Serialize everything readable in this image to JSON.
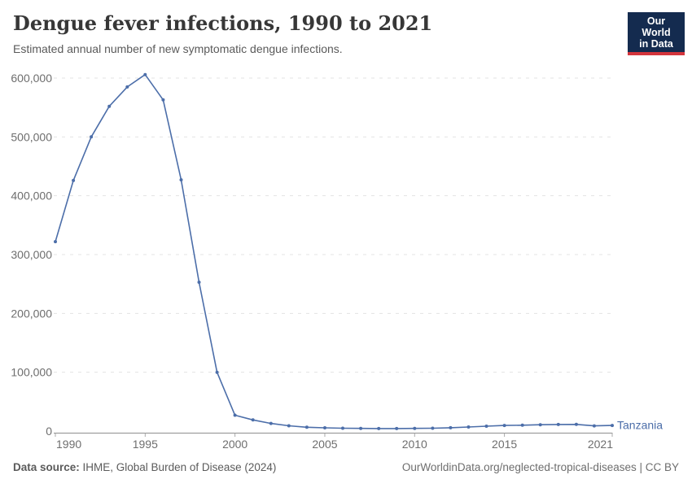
{
  "header": {
    "title": "Dengue fever infections, 1990 to 2021",
    "subtitle": "Estimated annual number of new symptomatic dengue infections."
  },
  "logo": {
    "line1": "Our World",
    "line2": "in Data",
    "bg_color": "#142B4F",
    "bar_color": "#D4353C"
  },
  "chart_data": {
    "type": "line",
    "title": "Dengue fever infections, 1990 to 2021",
    "xlabel": "",
    "ylabel": "",
    "xlim": [
      1990,
      2021
    ],
    "ylim": [
      0,
      600000
    ],
    "grid": "horizontal-dashed",
    "legend_position": "end-of-line-label",
    "x_ticks": [
      1990,
      1995,
      2000,
      2005,
      2010,
      2015,
      2021
    ],
    "x_tick_labels": [
      "1990",
      "1995",
      "2000",
      "2005",
      "2010",
      "2015",
      "2021"
    ],
    "y_ticks": [
      0,
      100000,
      200000,
      300000,
      400000,
      500000,
      600000
    ],
    "y_tick_labels": [
      "0",
      "100,000",
      "200,000",
      "300,000",
      "400,000",
      "500,000",
      "600,000"
    ],
    "x": [
      1990,
      1991,
      1992,
      1993,
      1994,
      1995,
      1996,
      1997,
      1998,
      1999,
      2000,
      2001,
      2002,
      2003,
      2004,
      2005,
      2006,
      2007,
      2008,
      2009,
      2010,
      2011,
      2012,
      2013,
      2014,
      2015,
      2016,
      2017,
      2018,
      2019,
      2020,
      2021
    ],
    "series": [
      {
        "name": "Tanzania",
        "color": "#4C6EA9",
        "values": [
          322000,
          426000,
          500000,
          552000,
          585000,
          606000,
          563000,
          427000,
          253000,
          100000,
          27000,
          19000,
          13000,
          9000,
          6500,
          5500,
          4800,
          4500,
          4300,
          4300,
          4500,
          4900,
          5600,
          6900,
          8300,
          9500,
          10000,
          10800,
          11200,
          11300,
          8800,
          9600
        ]
      }
    ],
    "colors": {
      "gridline": "#e3e3e3",
      "axis_line": "#8f8f8f",
      "tick_label": "#6e6e6e"
    }
  },
  "footer": {
    "source_label": "Data source:",
    "source_text": " IHME, Global Burden of Disease (2024)",
    "credit": "OurWorldinData.org/neglected-tropical-diseases | CC BY"
  }
}
